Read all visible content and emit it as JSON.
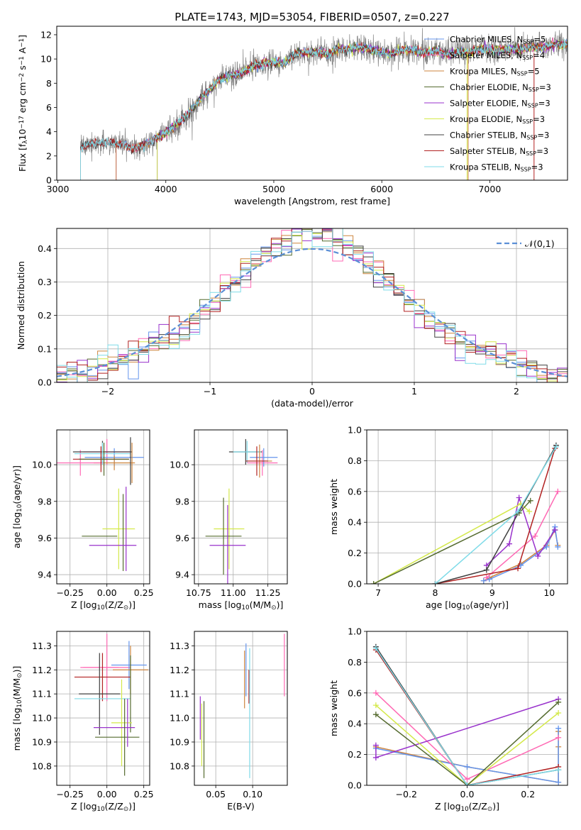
{
  "chart_data": [
    {
      "id": "spectrum",
      "type": "line",
      "title": "PLATE=1743, MJD=53054, FIBERID=0507, z=0.227",
      "xlabel": "wavelength [Angstrom, rest frame]",
      "ylabel": "Flux [f$_\\lambda$10$^{-17}$ erg cm$^{-2}$ s$^{-1}$ A$^{-1}$]",
      "xlim": [
        2990,
        7720
      ],
      "ylim": [
        0,
        12.7
      ],
      "xticks": [
        3000,
        4000,
        5000,
        6000,
        7000
      ],
      "yticks": [
        0,
        2,
        4,
        6,
        8,
        10,
        12
      ],
      "grid": false,
      "legend_position": "top-right",
      "series_legend": [
        {
          "name": "Chabrier MILES, N$_{SSP}$=5",
          "color": "#6495ed"
        },
        {
          "name": "Salpeter MILES, N$_{SSP}$=4",
          "color": "#ff69b4"
        },
        {
          "name": "Kroupa MILES, N$_{SSP}$=5",
          "color": "#cd853f"
        },
        {
          "name": "Chabrier ELODIE, N$_{SSP}$=3",
          "color": "#556b2f"
        },
        {
          "name": "Salpeter ELODIE, N$_{SSP}$=3",
          "color": "#9932cc"
        },
        {
          "name": "Kroupa ELODIE, N$_{SSP}$=3",
          "color": "#d4e94a"
        },
        {
          "name": "Chabrier STELIB, N$_{SSP}$=3",
          "color": "#404040"
        },
        {
          "name": "Salpeter STELIB, N$_{SSP}$=3",
          "color": "#b22222"
        },
        {
          "name": "Kroupa STELIB, N$_{SSP}$=3",
          "color": "#7fdbe8"
        }
      ],
      "data_color": "#808080",
      "envelope": {
        "wavelength": [
          3210,
          3300,
          3400,
          3500,
          3600,
          3700,
          3800,
          3900,
          4000,
          4100,
          4200,
          4300,
          4400,
          4500,
          4600,
          4700,
          4800,
          4900,
          5000,
          5100,
          5200,
          5300,
          5400,
          5500,
          5600,
          5700,
          5800,
          5900,
          6000,
          6100,
          6200,
          6300,
          6400,
          6500,
          6600,
          6700,
          6800,
          6900,
          7000,
          7100,
          7200,
          7300,
          7400,
          7500,
          7600
        ],
        "flux": [
          2.7,
          3.0,
          3.1,
          3.1,
          2.9,
          2.6,
          2.9,
          3.4,
          3.9,
          4.6,
          5.4,
          6.5,
          7.4,
          8.3,
          8.6,
          8.8,
          9.4,
          9.6,
          9.7,
          9.6,
          10.4,
          10.5,
          10.6,
          10.4,
          10.8,
          10.8,
          11.0,
          10.8,
          10.6,
          10.4,
          10.8,
          10.7,
          10.5,
          10.7,
          10.4,
          10.6,
          10.5,
          10.8,
          10.8,
          10.7,
          10.8,
          10.8,
          11.0,
          11.0,
          11.2
        ]
      },
      "model_start_wavelength": {
        "MILES": 3540,
        "ELODIE": 3920,
        "STELIB": 3210
      }
    },
    {
      "id": "residuals",
      "type": "line",
      "xlabel": "(data-model)/error",
      "ylabel": "Normed distribution",
      "xlim": [
        -2.5,
        2.5
      ],
      "ylim": [
        0,
        0.46
      ],
      "xticks": [
        -2,
        -1,
        0,
        1,
        2
      ],
      "yticks": [
        0.0,
        0.1,
        0.2,
        0.3,
        0.4
      ],
      "grid": true,
      "legend_position": "top-right",
      "legend": [
        {
          "name": "$\\mathcal{N}(0,1)$",
          "color": "#5b8fd6",
          "style": "dashed"
        }
      ],
      "histogram_bins": {
        "start": -2.5,
        "width": 0.1,
        "count": 50
      }
    },
    {
      "id": "age-vs-Z",
      "type": "scatter",
      "xlabel": "Z [log$_{10}$(Z/Z$_\\odot$)]",
      "ylabel": "age  [log$_{10}$(age/yr)]",
      "xlim": [
        -0.34,
        0.29
      ],
      "ylim": [
        9.35,
        10.19
      ],
      "xticks": [
        -0.25,
        0.0,
        0.25
      ],
      "yticks": [
        9.4,
        9.6,
        9.8,
        10.0
      ],
      "xticklabels": [
        "−0.25",
        "0.00",
        "0.25"
      ],
      "yticklabels": [
        "9.4",
        "9.6",
        "9.8",
        "10.0"
      ],
      "grid": true,
      "points": [
        {
          "x": 0.0,
          "y": 10.07,
          "xerr": 0.16,
          "yerr": 0.07,
          "color": "#ff69b4"
        },
        {
          "x": 0.05,
          "y": 10.04,
          "xerr": 0.2,
          "yerr": 0.05,
          "color": "#6495ed"
        },
        {
          "x": 0.05,
          "y": 10.01,
          "xerr": 0.14,
          "yerr": 0.04,
          "color": "#cd853f"
        },
        {
          "x": -0.18,
          "y": 10.01,
          "xerr": 0.16,
          "yerr": 0.07,
          "color": "#ff69b4"
        },
        {
          "x": -0.03,
          "y": 10.07,
          "xerr": 0.2,
          "yerr": 0.06,
          "color": "#404040"
        },
        {
          "x": -0.03,
          "y": 10.06,
          "xerr": 0.19,
          "yerr": 0.06,
          "color": "#7fdbe8"
        },
        {
          "x": -0.04,
          "y": 10.03,
          "xerr": 0.19,
          "yerr": 0.07,
          "color": "#b22222"
        },
        {
          "x": -0.02,
          "y": 10.03,
          "xerr": 0.17,
          "yerr": 0.09,
          "color": "#556b2f"
        },
        {
          "x": 0.16,
          "y": 10.02,
          "xerr": 0.0,
          "yerr": 0.13,
          "color": "#404040"
        },
        {
          "x": 0.17,
          "y": 10.01,
          "xerr": 0.0,
          "yerr": 0.11,
          "color": "#cd853f"
        },
        {
          "x": 0.08,
          "y": 9.65,
          "xerr": 0.11,
          "yerr": 0.22,
          "color": "#d4e94a"
        },
        {
          "x": 0.11,
          "y": 9.63,
          "xerr": 0.0,
          "yerr": 0.21,
          "color": "#556b2f"
        },
        {
          "x": 0.13,
          "y": 9.65,
          "xerr": 0.0,
          "yerr": 0.23,
          "color": "#9932cc"
        },
        {
          "x": -0.05,
          "y": 9.61,
          "xerr": 0.12,
          "yerr": 0.0,
          "color": "#556b2f"
        },
        {
          "x": 0.04,
          "y": 9.56,
          "xerr": 0.16,
          "yerr": 0.0,
          "color": "#9932cc"
        }
      ]
    },
    {
      "id": "age-vs-mass",
      "type": "scatter",
      "xlabel": "mass [log$_{10}$(M/M$_\\odot$)]",
      "xlim": [
        10.72,
        11.39
      ],
      "ylim": [
        9.35,
        10.19
      ],
      "xticks": [
        10.75,
        11.0,
        11.25
      ],
      "yticks": [
        9.4,
        9.6,
        9.8,
        10.0
      ],
      "xticklabels": [
        "10.75",
        "11.00",
        "11.25"
      ],
      "yticklabels": [
        "9.4",
        "9.6",
        "9.8",
        "10.0"
      ],
      "grid": true,
      "points": [
        {
          "x": 11.09,
          "y": 10.07,
          "xerr": 0.12,
          "yerr": 0.07,
          "color": "#404040"
        },
        {
          "x": 11.1,
          "y": 10.07,
          "xerr": 0.1,
          "yerr": 0.06,
          "color": "#7fdbe8"
        },
        {
          "x": 11.21,
          "y": 10.01,
          "xerr": 0.11,
          "yerr": 0.07,
          "color": "#ff69b4"
        },
        {
          "x": 11.22,
          "y": 10.04,
          "xerr": 0.1,
          "yerr": 0.05,
          "color": "#6495ed"
        },
        {
          "x": 11.19,
          "y": 10.02,
          "xerr": 0.09,
          "yerr": 0.09,
          "color": "#cd853f"
        },
        {
          "x": 11.17,
          "y": 10.02,
          "xerr": 0.08,
          "yerr": 0.08,
          "color": "#b22222"
        },
        {
          "x": 10.97,
          "y": 9.65,
          "xerr": 0.11,
          "yerr": 0.22,
          "color": "#d4e94a"
        },
        {
          "x": 10.93,
          "y": 9.61,
          "xerr": 0.13,
          "yerr": 0.21,
          "color": "#556b2f"
        },
        {
          "x": 10.96,
          "y": 9.56,
          "xerr": 0.13,
          "yerr": 0.22,
          "color": "#9932cc"
        }
      ]
    },
    {
      "id": "mass-weight-vs-age",
      "type": "line",
      "xlabel": "age  [log$_{10}$(age/yr)]",
      "ylabel": "mass weight",
      "xlim": [
        6.8,
        10.32
      ],
      "ylim": [
        0,
        1.0
      ],
      "xticks": [
        7,
        8,
        9,
        10
      ],
      "yticks": [
        0.0,
        0.2,
        0.4,
        0.6,
        0.8,
        1.0
      ],
      "xticklabels": [
        "7",
        "8",
        "9",
        "10"
      ],
      "yticklabels": [
        "0.0",
        "0.2",
        "0.4",
        "0.6",
        "0.8",
        "1.0"
      ],
      "grid": true,
      "series": [
        {
          "color": "#cd853f",
          "x": [
            8.85,
            8.95,
            9.5,
            9.95,
            10.1,
            10.15
          ],
          "y": [
            0.02,
            0.04,
            0.13,
            0.25,
            0.35,
            0.25
          ]
        },
        {
          "color": "#6495ed",
          "x": [
            8.85,
            8.95,
            9.5,
            9.95,
            10.1,
            10.15
          ],
          "y": [
            0.02,
            0.03,
            0.12,
            0.24,
            0.37,
            0.24
          ]
        },
        {
          "color": "#ff69b4",
          "x": [
            8.9,
            9.75,
            10.15
          ],
          "y": [
            0.04,
            0.31,
            0.6
          ]
        },
        {
          "color": "#9932cc",
          "x": [
            8.9,
            9.3,
            9.47,
            9.8,
            10.1
          ],
          "y": [
            0.12,
            0.26,
            0.56,
            0.18,
            0.35
          ]
        },
        {
          "color": "#d4e94a",
          "x": [
            6.92,
            9.5,
            9.65
          ],
          "y": [
            0.0,
            0.52,
            0.47
          ]
        },
        {
          "color": "#556b2f",
          "x": [
            6.92,
            9.47,
            9.67
          ],
          "y": [
            0.0,
            0.46,
            0.54
          ]
        },
        {
          "color": "#b22222",
          "x": [
            8.0,
            9.45,
            10.1
          ],
          "y": [
            0.0,
            0.1,
            0.88
          ]
        },
        {
          "color": "#404040",
          "x": [
            8.0,
            8.9,
            10.12
          ],
          "y": [
            0.0,
            0.09,
            0.9
          ]
        },
        {
          "color": "#7fdbe8",
          "x": [
            8.0,
            9.45,
            10.12
          ],
          "y": [
            0.0,
            0.47,
            0.89
          ]
        }
      ]
    },
    {
      "id": "mass-vs-Z",
      "type": "scatter",
      "xlabel": "Z [log$_{10}$(Z/Z$_\\odot$)]",
      "ylabel": "mass [log$_{10}$(M/M$_\\odot$)]",
      "xlim": [
        -0.34,
        0.29
      ],
      "ylim": [
        10.72,
        11.36
      ],
      "xticks": [
        -0.25,
        0.0,
        0.25
      ],
      "yticks": [
        10.8,
        10.9,
        11.0,
        11.1,
        11.2,
        11.3
      ],
      "xticklabels": [
        "−0.25",
        "0.00",
        "0.25"
      ],
      "yticklabels": [
        "10.8",
        "10.9",
        "11.0",
        "11.1",
        "11.2",
        "11.3"
      ],
      "grid": true,
      "points": [
        {
          "x": 0.0,
          "y": 11.21,
          "xerr": 0.16,
          "yerr": 0.14,
          "color": "#ff69b4"
        },
        {
          "x": 0.15,
          "y": 11.22,
          "xerr": 0.12,
          "yerr": 0.1,
          "color": "#6495ed"
        },
        {
          "x": 0.16,
          "y": 11.2,
          "xerr": 0.12,
          "yerr": 0.1,
          "color": "#cd853f"
        },
        {
          "x": -0.05,
          "y": 11.21,
          "xerr": 0.13,
          "yerr": 0.0,
          "color": "#ff69b4"
        },
        {
          "x": -0.03,
          "y": 11.17,
          "xerr": 0.19,
          "yerr": 0.1,
          "color": "#b22222"
        },
        {
          "x": -0.05,
          "y": 11.1,
          "xerr": 0.14,
          "yerr": 0.17,
          "color": "#404040"
        },
        {
          "x": -0.03,
          "y": 11.08,
          "xerr": 0.19,
          "yerr": 0.0,
          "color": "#7fdbe8"
        },
        {
          "x": 0.16,
          "y": 11.1,
          "xerr": 0.0,
          "yerr": 0.16,
          "color": "#556b2f"
        },
        {
          "x": 0.1,
          "y": 10.98,
          "xerr": 0.07,
          "yerr": 0.18,
          "color": "#d4e94a"
        },
        {
          "x": 0.05,
          "y": 10.96,
          "xerr": 0.14,
          "yerr": 0.0,
          "color": "#9932cc"
        },
        {
          "x": 0.07,
          "y": 10.92,
          "xerr": 0.15,
          "yerr": 0.0,
          "color": "#556b2f"
        },
        {
          "x": 0.12,
          "y": 10.92,
          "xerr": 0.0,
          "yerr": 0.16,
          "color": "#556b2f"
        },
        {
          "x": 0.14,
          "y": 10.98,
          "xerr": 0.0,
          "yerr": 0.1,
          "color": "#9932cc"
        }
      ]
    },
    {
      "id": "mass-vs-EBV",
      "type": "scatter",
      "xlabel": "E(B-V)",
      "xlim": [
        0.021,
        0.147
      ],
      "ylim": [
        10.72,
        11.36
      ],
      "xticks": [
        0.05,
        0.1
      ],
      "yticks": [
        10.8,
        10.9,
        11.0,
        11.1,
        11.2,
        11.3
      ],
      "xticklabels": [
        "0.05",
        "0.10"
      ],
      "yticklabels": [
        "10.8",
        "10.9",
        "11.0",
        "11.1",
        "11.2",
        "11.3"
      ],
      "grid": true,
      "points": [
        {
          "x": 0.029,
          "y": 11.0,
          "yerr": 0.09,
          "color": "#9932cc"
        },
        {
          "x": 0.031,
          "y": 10.93,
          "yerr": 0.13,
          "color": "#d4e94a"
        },
        {
          "x": 0.034,
          "y": 10.91,
          "yerr": 0.16,
          "color": "#556b2f"
        },
        {
          "x": 0.089,
          "y": 11.16,
          "yerr": 0.12,
          "color": "#cd853f"
        },
        {
          "x": 0.091,
          "y": 11.2,
          "yerr": 0.11,
          "color": "#6495ed"
        },
        {
          "x": 0.095,
          "y": 11.13,
          "yerr": 0.07,
          "color": "#b22222"
        },
        {
          "x": 0.096,
          "y": 11.02,
          "yerr": 0.27,
          "color": "#7fdbe8"
        },
        {
          "x": 0.143,
          "y": 11.22,
          "yerr": 0.13,
          "color": "#ff69b4"
        }
      ]
    },
    {
      "id": "mass-weight-vs-Z",
      "type": "line",
      "xlabel": "Z [log$_{10}$(Z/Z$_\\odot$)]",
      "ylabel": "mass weight",
      "xlim": [
        -0.33,
        0.33
      ],
      "ylim": [
        0,
        1.0
      ],
      "xticks": [
        -0.2,
        0.0,
        0.2
      ],
      "yticks": [
        0.0,
        0.2,
        0.4,
        0.6,
        0.8,
        1.0
      ],
      "xticklabels": [
        "−0.2",
        "0.0",
        "0.2"
      ],
      "yticklabels": [
        "0.0",
        "0.2",
        "0.4",
        "0.6",
        "0.8",
        "1.0"
      ],
      "grid": true,
      "series": [
        {
          "color": "#cd853f",
          "x": [
            -0.3,
            0.0,
            0.3,
            0.3,
            0.3
          ],
          "y": [
            0.25,
            0.12,
            0.02,
            0.25,
            0.35
          ]
        },
        {
          "color": "#6495ed",
          "x": [
            -0.3,
            0.0,
            0.3,
            0.3
          ],
          "y": [
            0.24,
            0.12,
            0.02,
            0.37
          ]
        },
        {
          "color": "#ff69b4",
          "x": [
            -0.3,
            0.0,
            0.3
          ],
          "y": [
            0.6,
            0.04,
            0.31
          ]
        },
        {
          "color": "#9932cc",
          "x": [
            -0.3,
            -0.3,
            0.3
          ],
          "y": [
            0.26,
            0.18,
            0.56
          ]
        },
        {
          "color": "#d4e94a",
          "x": [
            -0.3,
            0.0,
            0.3
          ],
          "y": [
            0.52,
            0.0,
            0.47
          ]
        },
        {
          "color": "#556b2f",
          "x": [
            -0.3,
            0.0,
            0.3
          ],
          "y": [
            0.46,
            0.0,
            0.54
          ]
        },
        {
          "color": "#b22222",
          "x": [
            -0.3,
            0.0,
            0.3
          ],
          "y": [
            0.88,
            0.0,
            0.12
          ]
        },
        {
          "color": "#404040",
          "x": [
            -0.3,
            0.0,
            0.3
          ],
          "y": [
            0.9,
            0.0,
            0.1
          ]
        },
        {
          "color": "#7fdbe8",
          "x": [
            -0.3,
            0.0,
            0.3
          ],
          "y": [
            0.89,
            0.0,
            0.1
          ]
        }
      ]
    }
  ]
}
